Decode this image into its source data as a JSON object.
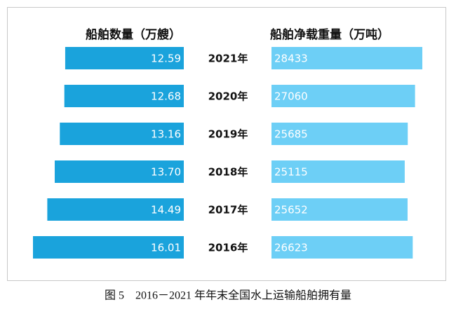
{
  "chart_data": {
    "type": "butterfly-bar",
    "title": "图 5　2016－2021 年年末全国水上运输船舶拥有量",
    "categories": [
      "2021年",
      "2020年",
      "2019年",
      "2018年",
      "2017年",
      "2016年"
    ],
    "series": [
      {
        "name": "船舶数量（万艘）",
        "color": "#1aa3dc",
        "values": [
          12.59,
          12.68,
          13.16,
          13.7,
          14.49,
          16.01
        ],
        "value_labels": [
          "12.59",
          "12.68",
          "13.16",
          "13.70",
          "14.49",
          "16.01"
        ]
      },
      {
        "name": "船舶净载重量（万吨）",
        "color": "#6dcff6",
        "values": [
          28433,
          27060,
          25685,
          25115,
          25652,
          26623
        ]
      }
    ]
  }
}
